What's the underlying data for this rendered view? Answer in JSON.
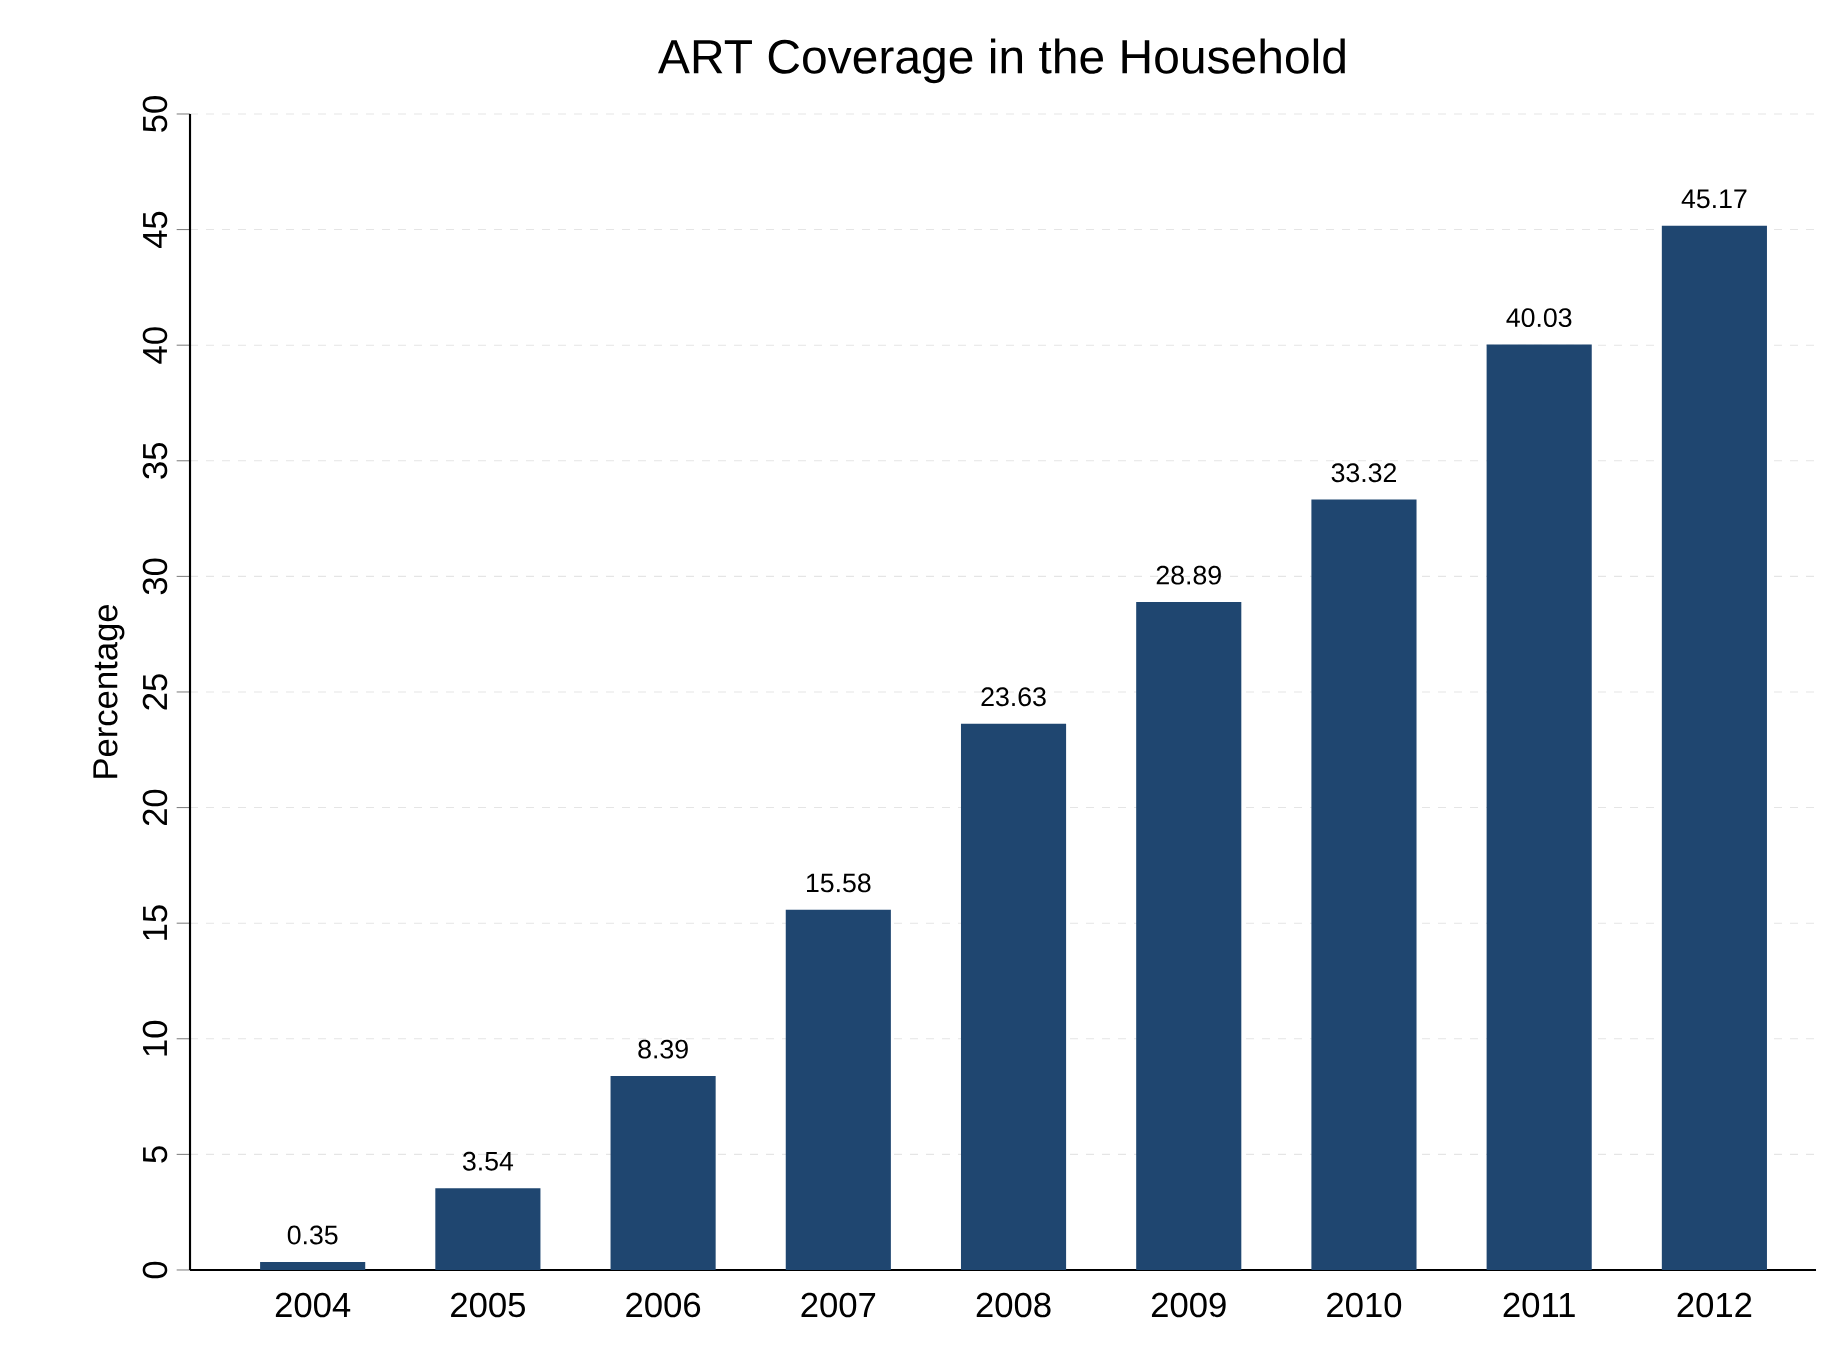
{
  "chart_data": {
    "type": "bar",
    "title": "ART Coverage in the Household",
    "ylabel": "Percentage",
    "categories": [
      "2004",
      "2005",
      "2006",
      "2007",
      "2008",
      "2009",
      "2010",
      "2011",
      "2012"
    ],
    "values": [
      0.35,
      3.54,
      8.39,
      15.58,
      23.63,
      28.89,
      33.32,
      40.03,
      45.17
    ],
    "color": "#1f4670",
    "ylim": [
      0,
      50
    ],
    "yticks": [
      0,
      5,
      10,
      15,
      20,
      25,
      30,
      35,
      40,
      45,
      50
    ],
    "grid": "y",
    "data_labels": true
  }
}
